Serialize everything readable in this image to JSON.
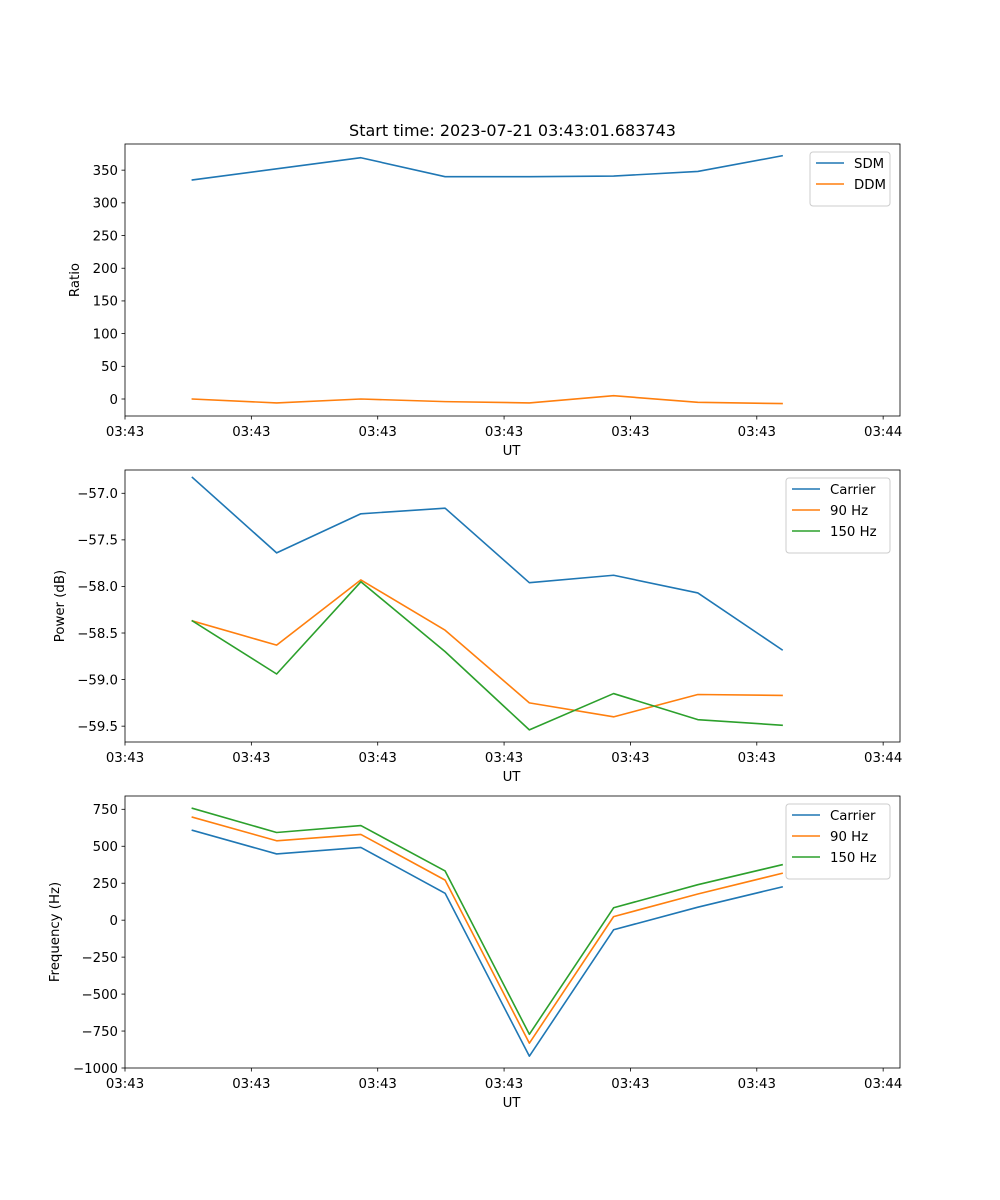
{
  "figure_title": "Start time: 2023-07-21 03:43:01.683743",
  "colors": {
    "blue": "#1f77b4",
    "orange": "#ff7f0e",
    "green": "#2ca02c"
  },
  "chart_data": [
    {
      "type": "line",
      "title": "Start time: 2023-07-21 03:43:01.683743",
      "xlabel": "UT",
      "ylabel": "Ratio",
      "x": [
        1,
        2,
        3,
        4,
        5,
        6,
        7,
        8
      ],
      "xlim": [
        0.2,
        9.4
      ],
      "xticks": [
        0.2,
        1.7,
        3.2,
        4.7,
        6.2,
        7.7,
        9.2
      ],
      "xtick_labels": [
        "03:43",
        "03:43",
        "03:43",
        "03:43",
        "03:43",
        "03:43",
        "03:44"
      ],
      "ylim": [
        -26,
        390
      ],
      "yticks": [
        0,
        50,
        100,
        150,
        200,
        250,
        300,
        350
      ],
      "ytick_labels": [
        "0",
        "50",
        "100",
        "150",
        "200",
        "250",
        "300",
        "350"
      ],
      "legend_position": "top-right",
      "series": [
        {
          "name": "SDM",
          "color": "#1f77b4",
          "values": [
            335,
            352,
            369,
            340,
            340,
            341,
            348,
            372
          ]
        },
        {
          "name": "DDM",
          "color": "#ff7f0e",
          "values": [
            0,
            -6,
            0,
            -4,
            -6,
            5,
            -5,
            -7
          ]
        }
      ]
    },
    {
      "type": "line",
      "title": "",
      "xlabel": "UT",
      "ylabel": "Power (dB)",
      "x": [
        1,
        2,
        3,
        4,
        5,
        6,
        7,
        8
      ],
      "xlim": [
        0.2,
        9.4
      ],
      "xticks": [
        0.2,
        1.7,
        3.2,
        4.7,
        6.2,
        7.7,
        9.2
      ],
      "xtick_labels": [
        "03:43",
        "03:43",
        "03:43",
        "03:43",
        "03:43",
        "03:43",
        "03:44"
      ],
      "ylim": [
        -59.67,
        -56.75
      ],
      "yticks": [
        -57.0,
        -57.5,
        -58.0,
        -58.5,
        -59.0,
        -59.5
      ],
      "ytick_labels": [
        "−57.0",
        "−57.5",
        "−58.0",
        "−58.5",
        "−59.0",
        "−59.5"
      ],
      "legend_position": "top-right",
      "series": [
        {
          "name": "Carrier",
          "color": "#1f77b4",
          "values": [
            -56.83,
            -57.64,
            -57.22,
            -57.16,
            -57.96,
            -57.88,
            -58.07,
            -58.68
          ]
        },
        {
          "name": "90 Hz",
          "color": "#ff7f0e",
          "values": [
            -58.37,
            -58.63,
            -57.93,
            -58.47,
            -59.25,
            -59.4,
            -59.16,
            -59.17
          ]
        },
        {
          "name": "150 Hz",
          "color": "#2ca02c",
          "values": [
            -58.37,
            -58.94,
            -57.95,
            -58.7,
            -59.54,
            -59.15,
            -59.43,
            -59.49
          ]
        }
      ]
    },
    {
      "type": "line",
      "title": "",
      "xlabel": "UT",
      "ylabel": "Frequency (Hz)",
      "x": [
        1,
        2,
        3,
        4,
        5,
        6,
        7,
        8
      ],
      "xlim": [
        0.2,
        9.4
      ],
      "xticks": [
        0.2,
        1.7,
        3.2,
        4.7,
        6.2,
        7.7,
        9.2
      ],
      "xtick_labels": [
        "03:43",
        "03:43",
        "03:43",
        "03:43",
        "03:43",
        "03:43",
        "03:44"
      ],
      "ylim": [
        -1000,
        840
      ],
      "yticks": [
        750,
        500,
        250,
        0,
        -250,
        -500,
        -750,
        -1000
      ],
      "ytick_labels": [
        "750",
        "500",
        "250",
        "0",
        "−250",
        "−500",
        "−750",
        "−1000"
      ],
      "legend_position": "top-right",
      "series": [
        {
          "name": "Carrier",
          "color": "#1f77b4",
          "values": [
            608,
            448,
            492,
            182,
            -920,
            -65,
            88,
            225
          ]
        },
        {
          "name": "90 Hz",
          "color": "#ff7f0e",
          "values": [
            697,
            537,
            580,
            271,
            -832,
            24,
            177,
            317
          ]
        },
        {
          "name": "150 Hz",
          "color": "#2ca02c",
          "values": [
            757,
            593,
            640,
            333,
            -772,
            84,
            240,
            375
          ]
        }
      ]
    }
  ]
}
